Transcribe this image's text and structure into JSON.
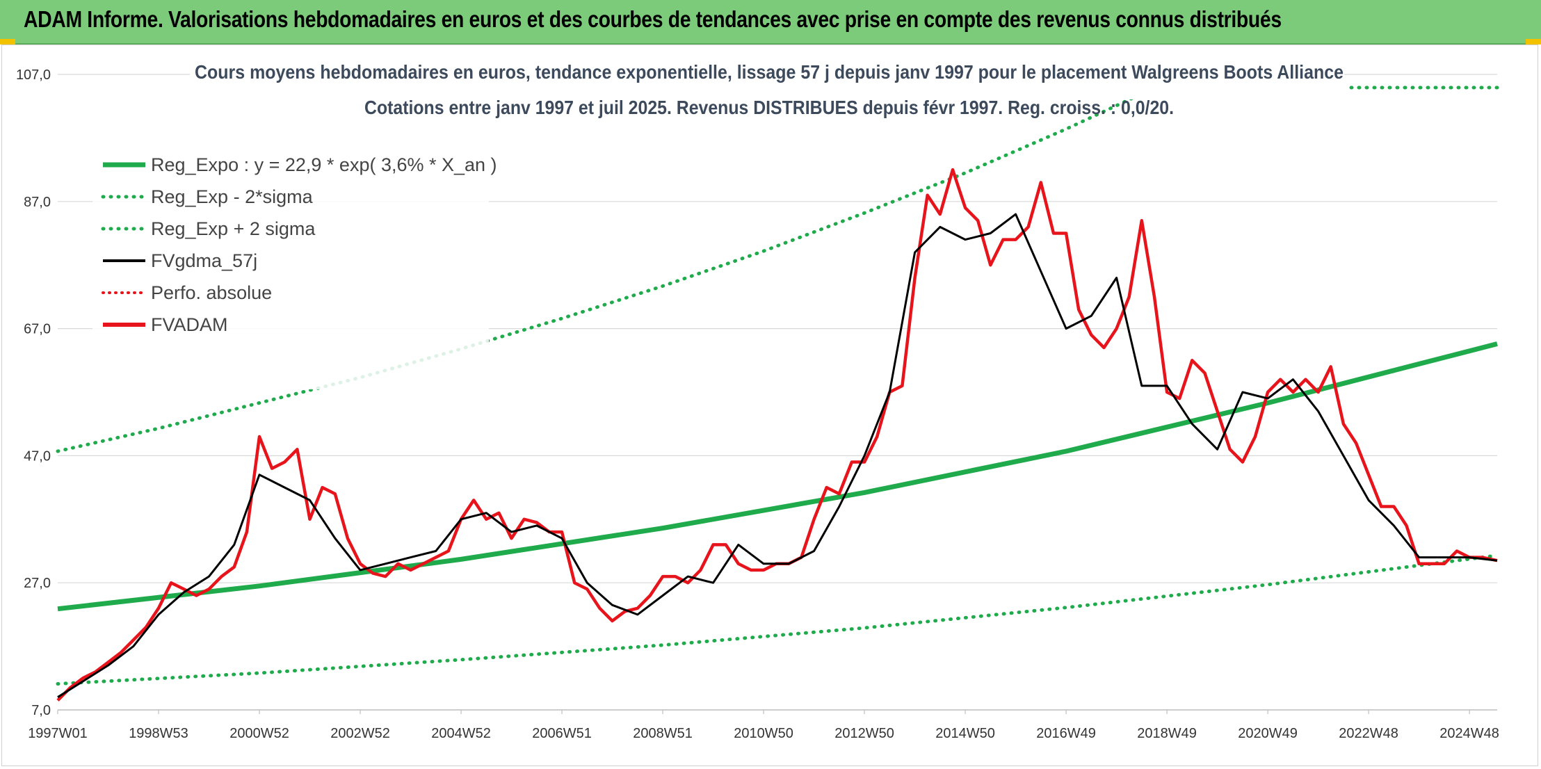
{
  "header": {
    "title": "ADAM Informe. Valorisations hebdomadaires en euros et des courbes de tendances avec prise en compte des revenus connus distribués",
    "background_color": "#7ccb7a",
    "accent_color": "#f2c200"
  },
  "chart_data": {
    "type": "line",
    "title": "Cours moyens hebdomadaires en euros, tendance exponentielle, lissage 57 j depuis janv 1997 pour le placement Walgreens Boots Alliance",
    "subtitle": "Cotations entre janv 1997 et juil 2025. Revenus DISTRIBUES depuis févr 1997. Reg. croiss. : 0,0/20.",
    "xlabel": "",
    "ylabel": "",
    "ylim": [
      7.0,
      107.0
    ],
    "xlim": [
      1997.0,
      2025.55
    ],
    "y_ticks": [
      "7,0",
      "27,0",
      "47,0",
      "67,0",
      "87,0",
      "107,0"
    ],
    "x_ticks": [
      {
        "label": "1997W01",
        "x": 1997.0
      },
      {
        "label": "1998W53",
        "x": 1999.0
      },
      {
        "label": "2000W52",
        "x": 2001.0
      },
      {
        "label": "2002W52",
        "x": 2003.0
      },
      {
        "label": "2004W52",
        "x": 2005.0
      },
      {
        "label": "2006W51",
        "x": 2007.0
      },
      {
        "label": "2008W51",
        "x": 2009.0
      },
      {
        "label": "2010W50",
        "x": 2011.0
      },
      {
        "label": "2012W50",
        "x": 2013.0
      },
      {
        "label": "2014W50",
        "x": 2015.0
      },
      {
        "label": "2016W49",
        "x": 2017.0
      },
      {
        "label": "2018W49",
        "x": 2019.0
      },
      {
        "label": "2020W49",
        "x": 2021.0
      },
      {
        "label": "2022W48",
        "x": 2023.0
      },
      {
        "label": "2024W48",
        "x": 2025.0
      }
    ],
    "grid": "horizontal",
    "legend_position": "top-left",
    "regression": {
      "a": 22.9,
      "b": 0.036
    },
    "series": [
      {
        "name": "Reg_Expo : y = 22,9 * exp( 3,6% *  X_an )",
        "key": "reg",
        "color": "#1faa4c",
        "style": "solid",
        "x": [
          1997.0,
          2001.0,
          2005.0,
          2009.0,
          2013.0,
          2017.0,
          2021.0,
          2025.55
        ],
        "y": [
          22.9,
          26.5,
          30.7,
          35.6,
          41.2,
          47.7,
          55.3,
          64.6
        ]
      },
      {
        "name": "Reg_Exp - 2*sigma",
        "key": "low",
        "color": "#1faa4c",
        "style": "dotted",
        "x": [
          1997.0,
          2001.0,
          2005.0,
          2009.0,
          2013.0,
          2017.0,
          2021.0,
          2025.55
        ],
        "y": [
          11.1,
          12.8,
          14.9,
          17.2,
          19.9,
          23.1,
          26.7,
          31.3
        ]
      },
      {
        "name": "Reg_Exp + 2 sigma",
        "key": "high",
        "color": "#1faa4c",
        "style": "dotted",
        "x": [
          1997.0,
          1999.0,
          2001.0,
          2003.0,
          2005.0,
          2007.0,
          2009.0,
          2011.0,
          2013.0,
          2015.0,
          2017.0,
          2019.0
        ],
        "y": [
          47.7,
          51.3,
          55.3,
          59.3,
          63.8,
          68.6,
          73.7,
          79.2,
          85.2,
          91.5,
          98.4,
          105.8
        ]
      },
      {
        "name": "FVgdma_57j",
        "key": "smooth",
        "color": "#000000",
        "style": "solid",
        "x": [
          1997.0,
          1997.5,
          1998.0,
          1998.5,
          1999.0,
          1999.5,
          2000.0,
          2000.5,
          2001.0,
          2001.5,
          2002.0,
          2002.5,
          2003.0,
          2003.5,
          2004.0,
          2004.5,
          2005.0,
          2005.5,
          2006.0,
          2006.5,
          2007.0,
          2007.5,
          2008.0,
          2008.5,
          2009.0,
          2009.5,
          2010.0,
          2010.5,
          2011.0,
          2011.5,
          2012.0,
          2012.5,
          2013.0,
          2013.5,
          2014.0,
          2014.5,
          2015.0,
          2015.5,
          2016.0,
          2016.5,
          2017.0,
          2017.5,
          2018.0,
          2018.5,
          2019.0,
          2019.5,
          2020.0,
          2020.5,
          2021.0,
          2021.5,
          2022.0,
          2022.5,
          2023.0,
          2023.5,
          2024.0,
          2024.5,
          2025.0,
          2025.55
        ],
        "y": [
          9.0,
          11.5,
          14.0,
          17.0,
          22.0,
          25.5,
          28.0,
          33.0,
          44.0,
          42.0,
          40.0,
          34.0,
          29.0,
          30.0,
          31.0,
          32.0,
          37.0,
          38.0,
          35.0,
          36.0,
          34.0,
          27.0,
          23.5,
          22.0,
          25.0,
          28.0,
          27.0,
          33.0,
          30.0,
          30.0,
          32.0,
          39.0,
          47.0,
          57.0,
          79.0,
          83.0,
          81.0,
          82.0,
          85.0,
          76.0,
          67.0,
          69.0,
          75.0,
          58.0,
          58.0,
          52.0,
          48.0,
          57.0,
          56.0,
          59.0,
          54.0,
          47.0,
          40.0,
          36.0,
          31.0,
          31.0,
          31.0,
          30.5
        ]
      },
      {
        "name": "Perfo. absolue",
        "key": "perfo",
        "color": "#e8141c",
        "style": "dotted",
        "x": [],
        "y": []
      },
      {
        "name": "FVADAM",
        "key": "fvadam",
        "color": "#e8141c",
        "style": "solid",
        "x": [
          1997.0,
          1997.25,
          1997.5,
          1997.75,
          1998.0,
          1998.25,
          1998.5,
          1998.75,
          1999.0,
          1999.25,
          1999.5,
          1999.75,
          2000.0,
          2000.25,
          2000.5,
          2000.75,
          2001.0,
          2001.25,
          2001.5,
          2001.75,
          2002.0,
          2002.25,
          2002.5,
          2002.75,
          2003.0,
          2003.25,
          2003.5,
          2003.75,
          2004.0,
          2004.25,
          2004.5,
          2004.75,
          2005.0,
          2005.25,
          2005.5,
          2005.75,
          2006.0,
          2006.25,
          2006.5,
          2006.75,
          2007.0,
          2007.25,
          2007.5,
          2007.75,
          2008.0,
          2008.25,
          2008.5,
          2008.75,
          2009.0,
          2009.25,
          2009.5,
          2009.75,
          2010.0,
          2010.25,
          2010.5,
          2010.75,
          2011.0,
          2011.25,
          2011.5,
          2011.75,
          2012.0,
          2012.25,
          2012.5,
          2012.75,
          2013.0,
          2013.25,
          2013.5,
          2013.75,
          2014.0,
          2014.25,
          2014.5,
          2014.75,
          2015.0,
          2015.25,
          2015.5,
          2015.75,
          2016.0,
          2016.25,
          2016.5,
          2016.75,
          2017.0,
          2017.25,
          2017.5,
          2017.75,
          2018.0,
          2018.25,
          2018.5,
          2018.75,
          2019.0,
          2019.25,
          2019.5,
          2019.75,
          2020.0,
          2020.25,
          2020.5,
          2020.75,
          2021.0,
          2021.25,
          2021.5,
          2021.75,
          2022.0,
          2022.25,
          2022.5,
          2022.75,
          2023.0,
          2023.25,
          2023.5,
          2023.75,
          2024.0,
          2024.25,
          2024.5,
          2024.75,
          2025.0,
          2025.25,
          2025.55
        ],
        "y": [
          8.5,
          10.5,
          12.0,
          13.0,
          14.5,
          16.0,
          18.0,
          20.0,
          23.0,
          27.0,
          26.0,
          25.0,
          26.0,
          28.0,
          29.5,
          35.0,
          50.0,
          45.0,
          46.0,
          48.0,
          37.0,
          42.0,
          41.0,
          34.0,
          30.0,
          28.5,
          28.0,
          30.0,
          29.0,
          30.0,
          31.0,
          32.0,
          37.0,
          40.0,
          37.0,
          38.0,
          34.0,
          37.0,
          36.5,
          35.0,
          35.0,
          27.0,
          26.0,
          23.0,
          21.0,
          22.5,
          23.0,
          25.0,
          28.0,
          28.0,
          27.0,
          29.0,
          33.0,
          33.0,
          30.0,
          29.0,
          29.0,
          30.0,
          30.0,
          31.0,
          37.0,
          42.0,
          41.0,
          46.0,
          46.0,
          50.0,
          57.0,
          58.0,
          75.0,
          88.0,
          85.0,
          92.0,
          86.0,
          84.0,
          77.0,
          81.0,
          81.0,
          83.0,
          90.0,
          82.0,
          82.0,
          70.0,
          66.0,
          64.0,
          67.0,
          72.0,
          84.0,
          72.0,
          57.0,
          56.0,
          62.0,
          60.0,
          54.0,
          48.0,
          46.0,
          50.0,
          57.0,
          59.0,
          57.0,
          59.0,
          57.0,
          61.0,
          52.0,
          49.0,
          44.0,
          39.0,
          39.0,
          36.0,
          30.0,
          30.0,
          30.0,
          32.0,
          31.0,
          31.0,
          30.5
        ]
      }
    ]
  }
}
